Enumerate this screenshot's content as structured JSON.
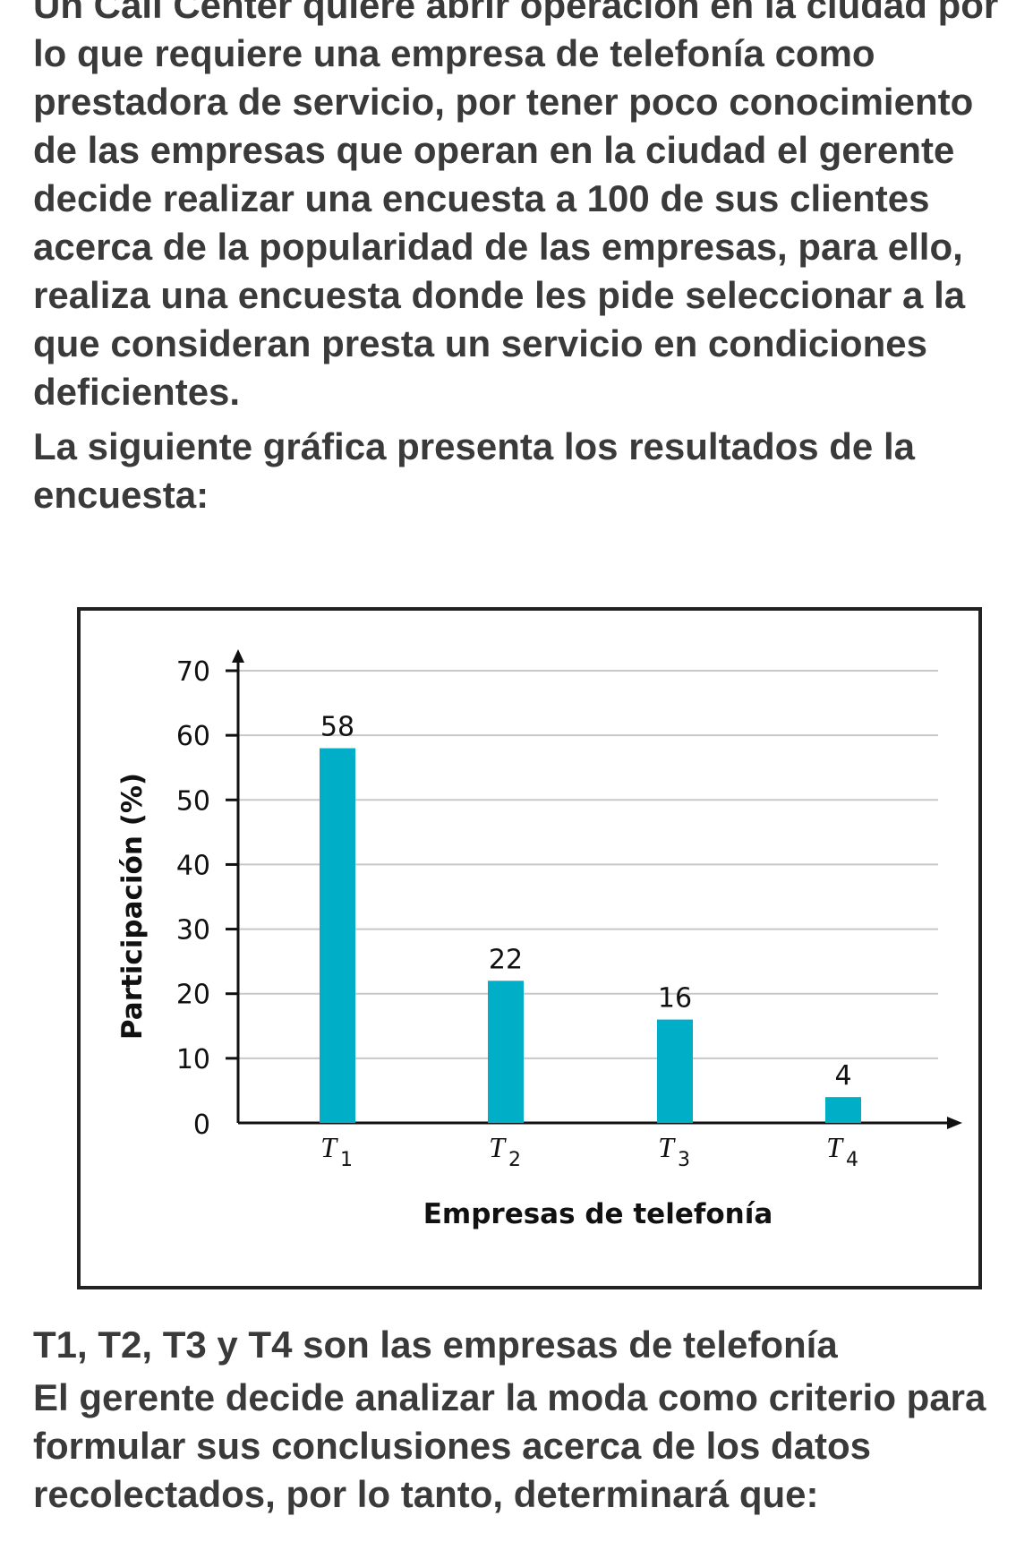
{
  "text": {
    "p1": "Un Call Center quiere abrir operación en la ciudad por lo que requiere una empresa de telefonía como prestadora de servicio, por tener poco conocimiento de las empresas que operan en la ciudad el gerente decide realizar una encuesta a 100 de sus clientes acerca de la popularidad de las empresas, para ello, realiza una encuesta donde les pide seleccionar a la que consideran presta un servicio en condiciones deficientes.",
    "p2": "La siguiente gráfica presenta los resultados de la encuesta:",
    "p3": "T1, T2, T3 y T4 son las empresas de telefonía",
    "p4": "El gerente decide analizar la moda como criterio para formular sus conclusiones acerca de los datos recolectados, por lo tanto, determinará que:"
  },
  "chart_data": {
    "type": "bar",
    "title": "",
    "xlabel": "Empresas de telefonía",
    "ylabel": "Participación (%)",
    "categories": [
      {
        "main": "T",
        "sub": "1"
      },
      {
        "main": "T",
        "sub": "2"
      },
      {
        "main": "T",
        "sub": "3"
      },
      {
        "main": "T",
        "sub": "4"
      }
    ],
    "values": [
      58,
      22,
      16,
      4
    ],
    "data_labels": [
      "58",
      "22",
      "16",
      "4"
    ],
    "ylim": [
      0,
      70
    ],
    "yticks": [
      0,
      10,
      20,
      30,
      40,
      50,
      60,
      70
    ],
    "ytick_labels": [
      "0",
      "10",
      "20",
      "30",
      "40",
      "50",
      "60",
      "70"
    ],
    "grid": true,
    "legend": "none",
    "bar_color": "#00aec8",
    "grid_color": "#c8c8c8",
    "axis_color": "#111111"
  }
}
